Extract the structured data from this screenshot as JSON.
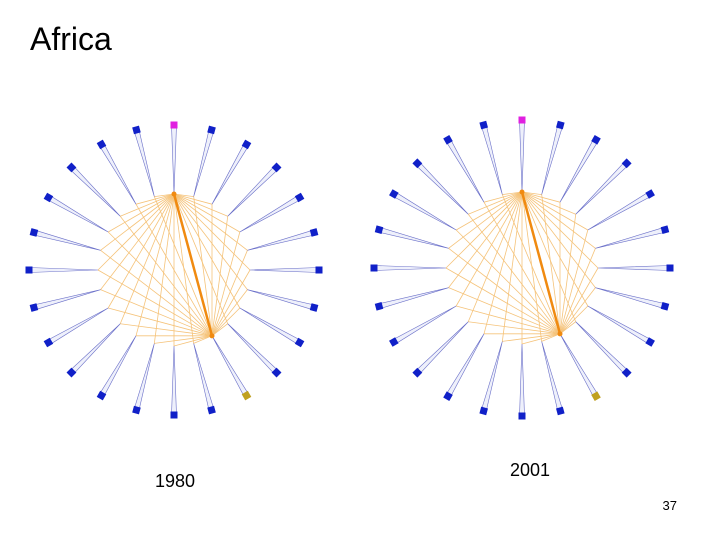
{
  "title": "Africa",
  "panels": [
    {
      "label": "1980"
    },
    {
      "label": "2001"
    }
  ],
  "page_number": "37"
}
